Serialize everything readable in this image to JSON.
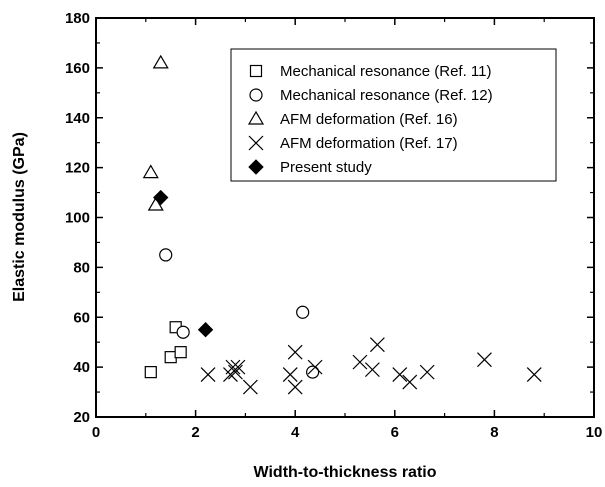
{
  "chart_data": {
    "type": "scatter",
    "xlabel": "Width-to-thickness ratio",
    "ylabel": "Elastic modulus (GPa)",
    "xlim": [
      0,
      10
    ],
    "ylim": [
      20,
      180
    ],
    "xticks": [
      "0",
      "2",
      "4",
      "6",
      "8",
      "10"
    ],
    "yticks": [
      "20",
      "40",
      "60",
      "80",
      "100",
      "120",
      "140",
      "160",
      "180"
    ],
    "grid": false,
    "legend_position": "top-right",
    "series": [
      {
        "name": "Mechanical resonance (Ref. 11)",
        "marker": "square-open",
        "points": [
          [
            1.1,
            38
          ],
          [
            1.5,
            44
          ],
          [
            1.6,
            56
          ],
          [
            1.7,
            46
          ]
        ]
      },
      {
        "name": "Mechanical resonance (Ref. 12)",
        "marker": "circle-open",
        "points": [
          [
            1.4,
            85
          ],
          [
            1.75,
            54
          ],
          [
            4.15,
            62
          ],
          [
            4.35,
            38
          ]
        ]
      },
      {
        "name": "AFM deformation (Ref. 16)",
        "marker": "triangle-open",
        "points": [
          [
            1.3,
            162
          ],
          [
            1.1,
            118
          ],
          [
            1.2,
            105
          ]
        ]
      },
      {
        "name": "AFM deformation (Ref. 17)",
        "marker": "x",
        "points": [
          [
            2.25,
            37
          ],
          [
            2.7,
            37
          ],
          [
            2.75,
            40
          ],
          [
            2.8,
            38
          ],
          [
            2.85,
            40
          ],
          [
            3.1,
            32
          ],
          [
            3.9,
            37
          ],
          [
            4.0,
            46
          ],
          [
            4.0,
            32
          ],
          [
            4.4,
            40
          ],
          [
            5.3,
            42
          ],
          [
            5.55,
            39
          ],
          [
            5.65,
            49
          ],
          [
            6.1,
            37
          ],
          [
            6.3,
            34
          ],
          [
            6.65,
            38
          ],
          [
            7.8,
            43
          ],
          [
            8.8,
            37
          ]
        ]
      },
      {
        "name": "Present study",
        "marker": "diamond-filled",
        "points": [
          [
            1.3,
            108
          ],
          [
            2.2,
            55
          ]
        ]
      }
    ]
  }
}
